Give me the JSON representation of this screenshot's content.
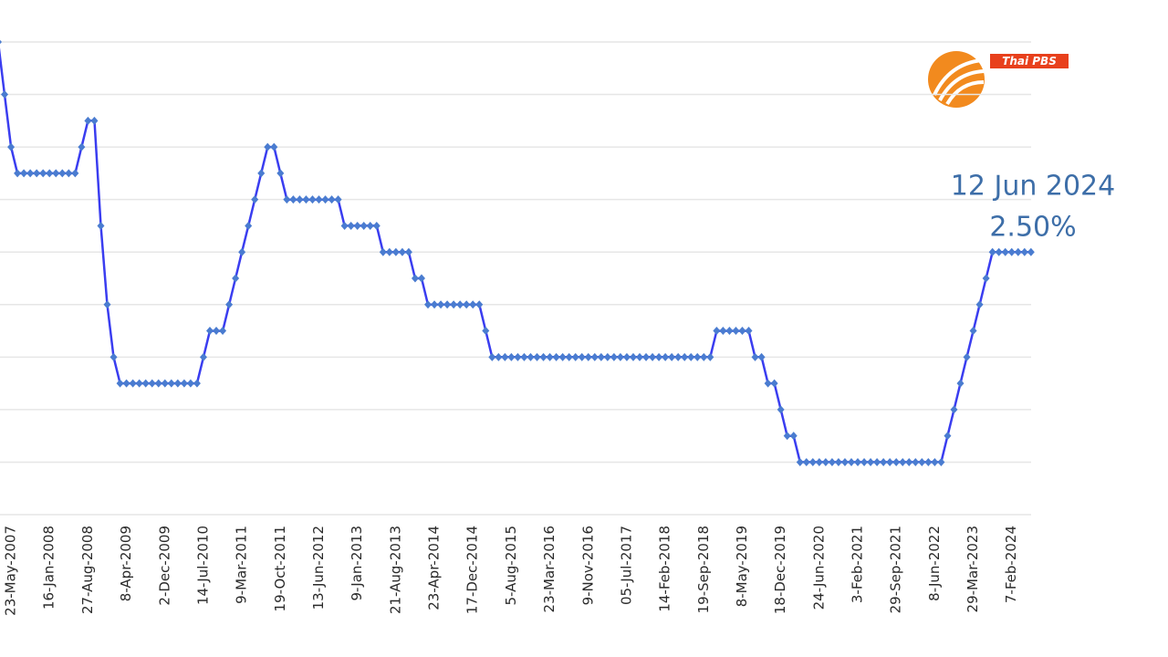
{
  "chart_data": {
    "type": "line",
    "categories": [
      null,
      null,
      "23-May-2007",
      null,
      null,
      null,
      null,
      null,
      "16-Jan-2008",
      null,
      null,
      null,
      null,
      null,
      "27-Aug-2008",
      null,
      null,
      null,
      null,
      null,
      "8-Apr-2009",
      null,
      null,
      null,
      null,
      null,
      "2-Dec-2009",
      null,
      null,
      null,
      null,
      null,
      "14-Jul-2010",
      null,
      null,
      null,
      null,
      null,
      "9-Mar-2011",
      null,
      null,
      null,
      null,
      null,
      "19-Oct-2011",
      null,
      null,
      null,
      null,
      null,
      "13-Jun-2012",
      null,
      null,
      null,
      null,
      null,
      "9-Jan-2013",
      null,
      null,
      null,
      null,
      null,
      "21-Aug-2013",
      null,
      null,
      null,
      null,
      null,
      "23-Apr-2014",
      null,
      null,
      null,
      null,
      null,
      "17-Dec-2014",
      null,
      null,
      null,
      null,
      null,
      "5-Aug-2015",
      null,
      null,
      null,
      null,
      null,
      "23-Mar-2016",
      null,
      null,
      null,
      null,
      null,
      "9-Nov-2016",
      null,
      null,
      null,
      null,
      null,
      "05-Jul-2017",
      null,
      null,
      null,
      null,
      null,
      "14-Feb-2018",
      null,
      null,
      null,
      null,
      null,
      "19-Sep-2018",
      null,
      null,
      null,
      null,
      null,
      "8-May-2019",
      null,
      null,
      null,
      null,
      null,
      "18-Dec-2019",
      null,
      null,
      null,
      null,
      null,
      "24-Jun-2020",
      null,
      null,
      null,
      null,
      null,
      "3-Feb-2021",
      null,
      null,
      null,
      null,
      null,
      "29-Sep-2021",
      null,
      null,
      null,
      null,
      null,
      "8-Jun-2022",
      null,
      null,
      null,
      null,
      null,
      "29-Mar-2023",
      null,
      null,
      null,
      null,
      null,
      "7-Feb-2024",
      null,
      null,
      null
    ],
    "values": [
      4.5,
      4.0,
      3.5,
      3.25,
      3.25,
      3.25,
      3.25,
      3.25,
      3.25,
      3.25,
      3.25,
      3.25,
      3.25,
      3.5,
      3.75,
      3.75,
      2.75,
      2.0,
      1.5,
      1.25,
      1.25,
      1.25,
      1.25,
      1.25,
      1.25,
      1.25,
      1.25,
      1.25,
      1.25,
      1.25,
      1.25,
      1.25,
      1.5,
      1.75,
      1.75,
      1.75,
      2.0,
      2.25,
      2.5,
      2.75,
      3.0,
      3.25,
      3.5,
      3.5,
      3.25,
      3.0,
      3.0,
      3.0,
      3.0,
      3.0,
      3.0,
      3.0,
      3.0,
      3.0,
      2.75,
      2.75,
      2.75,
      2.75,
      2.75,
      2.75,
      2.5,
      2.5,
      2.5,
      2.5,
      2.5,
      2.25,
      2.25,
      2.0,
      2.0,
      2.0,
      2.0,
      2.0,
      2.0,
      2.0,
      2.0,
      2.0,
      1.75,
      1.5,
      1.5,
      1.5,
      1.5,
      1.5,
      1.5,
      1.5,
      1.5,
      1.5,
      1.5,
      1.5,
      1.5,
      1.5,
      1.5,
      1.5,
      1.5,
      1.5,
      1.5,
      1.5,
      1.5,
      1.5,
      1.5,
      1.5,
      1.5,
      1.5,
      1.5,
      1.5,
      1.5,
      1.5,
      1.5,
      1.5,
      1.5,
      1.5,
      1.5,
      1.5,
      1.75,
      1.75,
      1.75,
      1.75,
      1.75,
      1.75,
      1.5,
      1.5,
      1.25,
      1.25,
      1.0,
      0.75,
      0.75,
      0.5,
      0.5,
      0.5,
      0.5,
      0.5,
      0.5,
      0.5,
      0.5,
      0.5,
      0.5,
      0.5,
      0.5,
      0.5,
      0.5,
      0.5,
      0.5,
      0.5,
      0.5,
      0.5,
      0.5,
      0.5,
      0.5,
      0.5,
      0.75,
      1.0,
      1.25,
      1.5,
      1.75,
      2.0,
      2.25,
      2.5,
      2.5,
      2.5,
      2.5,
      2.5,
      2.5,
      2.5
    ],
    "color": "#3a3df0",
    "marker_color": "#4a7cd0",
    "ylim": [
      0,
      4.5
    ],
    "yticks": [
      0.5,
      1.0,
      1.5,
      2.0,
      2.5,
      3.0,
      3.5,
      4.0,
      4.5
    ],
    "grid": true,
    "annotation": [
      "12 Jun 2024",
      "2.50%"
    ]
  },
  "logo": {
    "text": "Thai PBS"
  }
}
